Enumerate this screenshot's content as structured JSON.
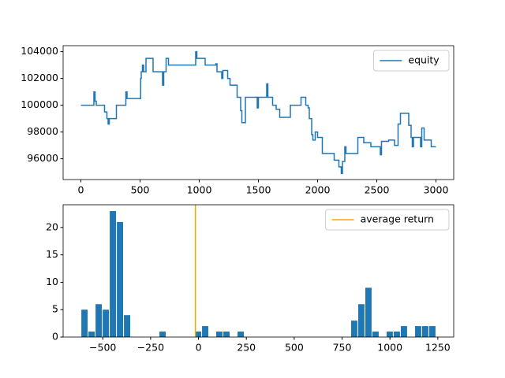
{
  "chart_data": [
    {
      "type": "line",
      "drawstyle": "steps-post",
      "legend": "upper right",
      "x": [
        0,
        100,
        110,
        120,
        130,
        160,
        200,
        220,
        230,
        240,
        290,
        300,
        370,
        380,
        390,
        500,
        505,
        510,
        520,
        530,
        550,
        600,
        610,
        680,
        690,
        700,
        720,
        740,
        960,
        970,
        980,
        1040,
        1050,
        1140,
        1150,
        1180,
        1190,
        1200,
        1240,
        1260,
        1310,
        1320,
        1340,
        1350,
        1360,
        1380,
        1390,
        1480,
        1490,
        1500,
        1560,
        1570,
        1580,
        1610,
        1620,
        1640,
        1650,
        1680,
        1760,
        1770,
        1850,
        1860,
        1890,
        1900,
        1920,
        1930,
        1950,
        1960,
        1980,
        2000,
        2040,
        2130,
        2140,
        2170,
        2180,
        2200,
        2210,
        2230,
        2240,
        2330,
        2340,
        2380,
        2390,
        2440,
        2450,
        2520,
        2530,
        2540,
        2600,
        2640,
        2650,
        2680,
        2700,
        2760,
        2770,
        2790,
        2800,
        2810,
        2850,
        2870,
        2880,
        2900,
        2960,
        3000
      ],
      "series": [
        {
          "name": "equity",
          "color": "#1f77b4",
          "values": [
            100000,
            100000,
            101000,
            100300,
            100000,
            100000,
            99500,
            99000,
            98600,
            99000,
            99000,
            100000,
            100000,
            101000,
            100500,
            100500,
            102000,
            102500,
            103000,
            102500,
            103500,
            103500,
            102500,
            102500,
            101500,
            102500,
            103500,
            103000,
            103000,
            104000,
            103500,
            103500,
            103000,
            103100,
            102500,
            102500,
            102000,
            102600,
            102000,
            101500,
            101500,
            100600,
            100600,
            99600,
            98700,
            98700,
            100600,
            100600,
            99800,
            100600,
            100600,
            101600,
            100600,
            100600,
            100000,
            100000,
            99700,
            99100,
            99100,
            100000,
            100000,
            100600,
            100600,
            100000,
            99800,
            99000,
            97800,
            97400,
            98000,
            97600,
            96400,
            96400,
            95900,
            95900,
            95400,
            94900,
            95800,
            96900,
            96400,
            96400,
            97600,
            97600,
            97200,
            97200,
            96900,
            96900,
            96300,
            97300,
            97400,
            97400,
            97000,
            98600,
            99400,
            99400,
            98500,
            97600,
            96900,
            97600,
            97600,
            96900,
            98300,
            97400,
            96900,
            96900
          ]
        }
      ],
      "xlim": [
        -150,
        3150
      ],
      "xticks": [
        0,
        500,
        1000,
        1500,
        2000,
        2500,
        3000
      ],
      "ylim": [
        94450,
        104450
      ],
      "yticks": [
        96000,
        98000,
        100000,
        102000,
        104000
      ]
    },
    {
      "type": "histogram",
      "color": "#1f77b4",
      "legend": "upper right",
      "bins": [
        -614,
        -576.92,
        -539.84,
        -502.76,
        -465.68,
        -428.6,
        -391.52,
        -354.44,
        -317.36,
        -280.28,
        -243.2,
        -206.12,
        -169.04,
        -131.96,
        -94.88,
        -57.8,
        -20.72,
        16.36,
        53.44,
        90.52,
        127.6,
        164.68,
        201.76,
        238.84,
        275.92,
        313,
        350.08,
        387.16,
        424.24,
        461.32,
        498.4,
        535.48,
        572.56,
        609.64,
        646.72,
        683.8,
        720.88,
        757.96,
        795.04,
        832.12,
        869.2,
        906.28,
        943.36,
        980.44,
        1017.52,
        1054.6,
        1091.68,
        1128.76,
        1165.84,
        1202.92,
        1240
      ],
      "values": [
        5,
        1,
        6,
        5,
        23,
        21,
        4,
        0,
        0,
        0,
        0,
        1,
        0,
        0,
        0,
        0,
        1,
        2,
        0,
        1,
        1,
        0,
        1,
        0,
        0,
        0,
        0,
        0,
        0,
        0,
        0,
        0,
        0,
        0,
        0,
        0,
        0,
        0,
        3,
        6,
        9,
        1,
        0,
        1,
        1,
        2,
        0,
        2,
        2,
        2
      ],
      "vlines": [
        {
          "name": "average return",
          "color": "orange",
          "x": -16
        }
      ],
      "xlim": [
        -707,
        1333
      ],
      "xticks": [
        {
          "value": -500,
          "label": "−500"
        },
        {
          "value": -250,
          "label": "−250"
        },
        0,
        250,
        500,
        750,
        1000,
        1250
      ],
      "ylim": [
        0,
        24.15
      ],
      "yticks": [
        0,
        5,
        10,
        15,
        20
      ]
    }
  ]
}
